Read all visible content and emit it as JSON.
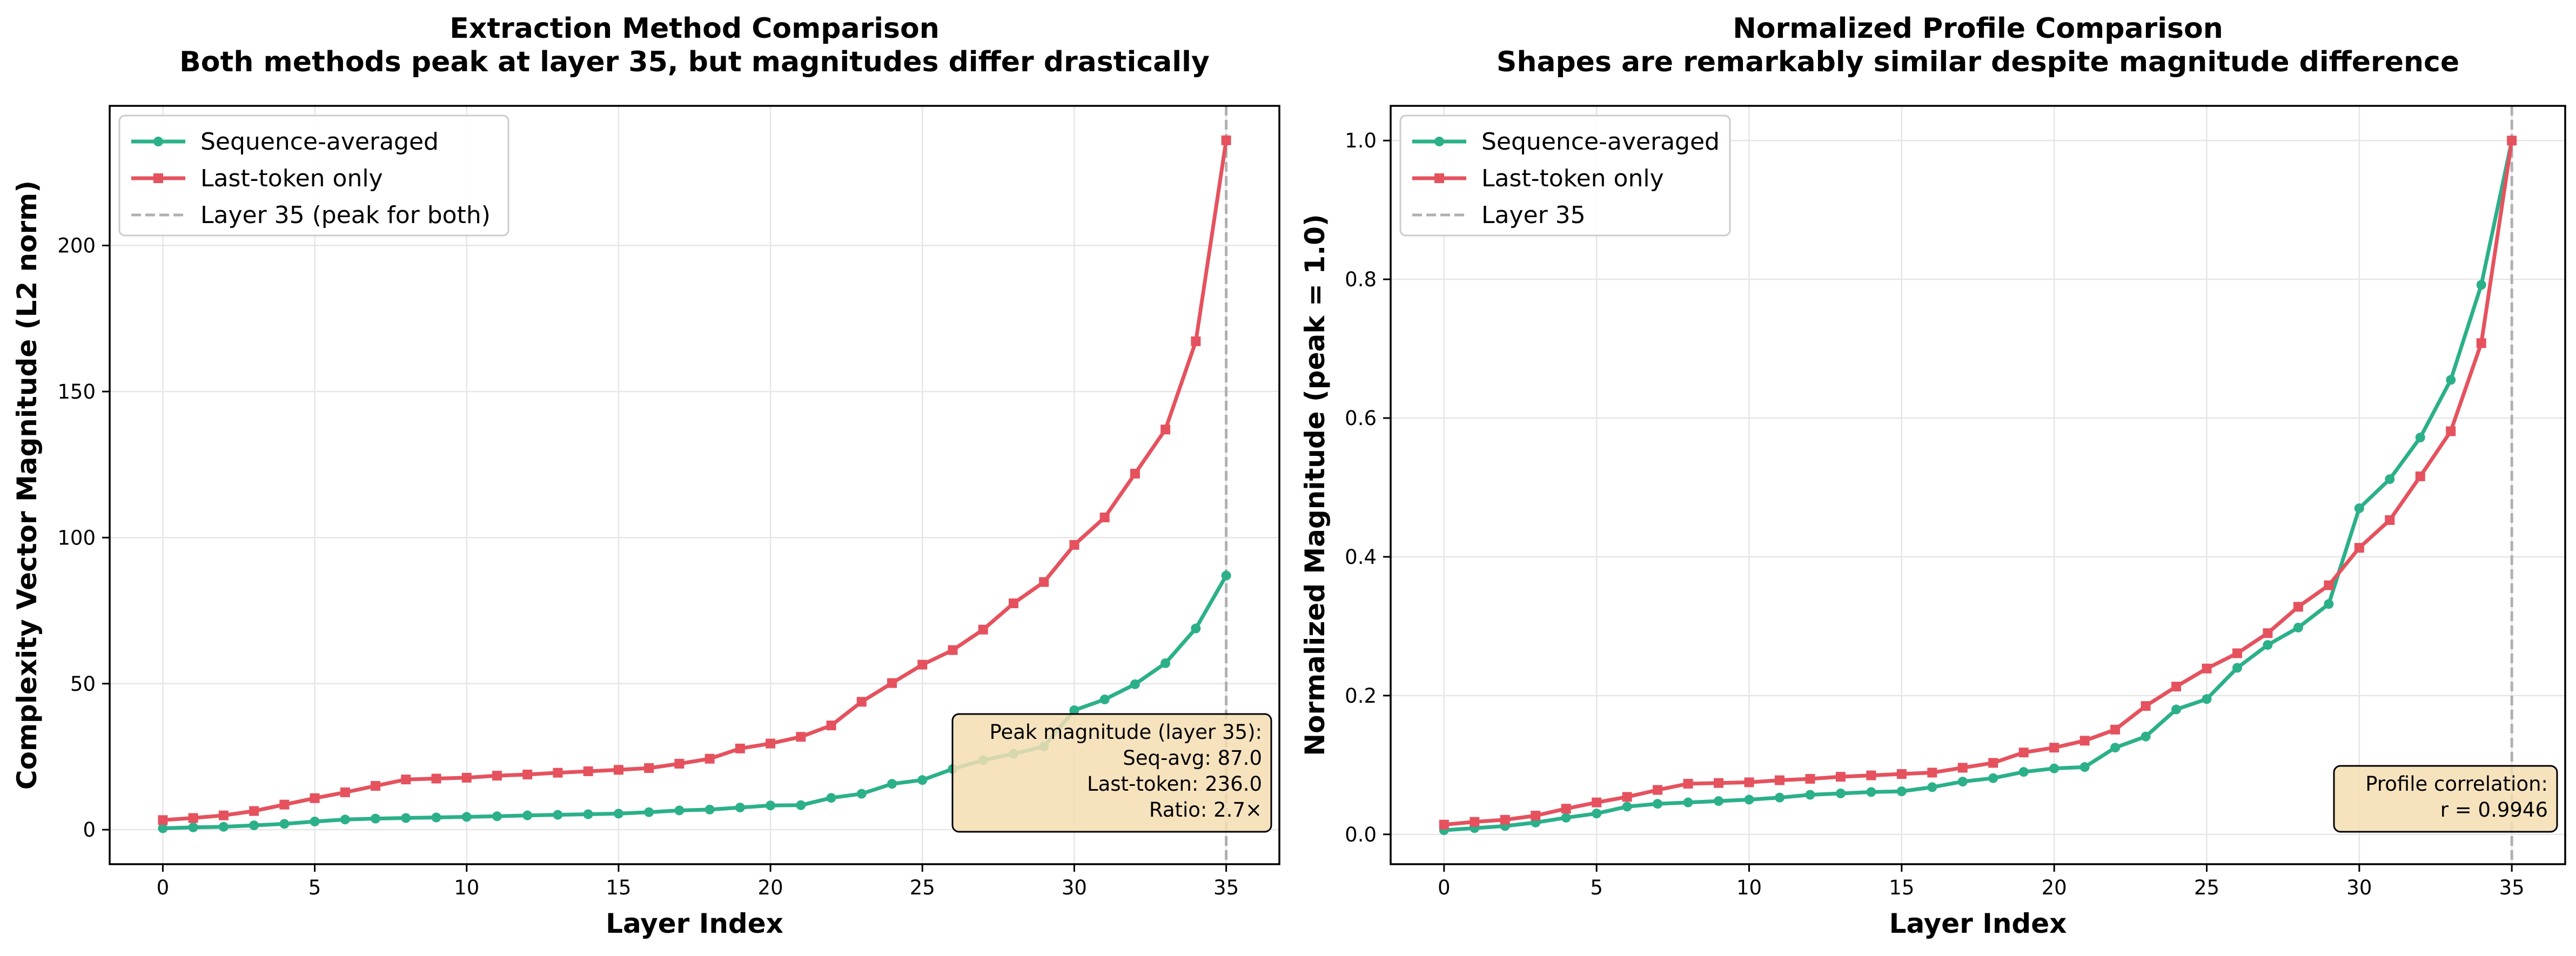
{
  "chart_data": [
    {
      "type": "line",
      "title_lines": [
        "Extraction Method Comparison",
        "Both methods peak at layer 35, but magnitudes differ drastically"
      ],
      "xlabel": "Layer Index",
      "ylabel": "Complexity Vector Magnitude (L2 norm)",
      "xlim": [
        -1.75,
        36.75
      ],
      "ylim": [
        -11.8,
        247.8
      ],
      "xticks": [
        0,
        5,
        10,
        15,
        20,
        25,
        30,
        35
      ],
      "yticks": [
        0,
        50,
        100,
        150,
        200
      ],
      "grid": true,
      "legend_position": "top-left",
      "x": [
        0,
        1,
        2,
        3,
        4,
        5,
        6,
        7,
        8,
        9,
        10,
        11,
        12,
        13,
        14,
        15,
        16,
        17,
        18,
        19,
        20,
        21,
        22,
        23,
        24,
        25,
        26,
        27,
        28,
        29,
        30,
        31,
        32,
        33,
        34,
        35
      ],
      "series": [
        {
          "name": "Sequence-averaged",
          "color": "#2bb08a",
          "marker": "circle",
          "values": [
            0.5,
            0.8,
            1.0,
            1.5,
            2.0,
            2.8,
            3.5,
            3.8,
            4.0,
            4.2,
            4.4,
            4.6,
            4.9,
            5.1,
            5.3,
            5.5,
            6.0,
            6.6,
            6.9,
            7.6,
            8.3,
            8.4,
            10.9,
            12.3,
            15.7,
            17.0,
            20.8,
            23.8,
            26.0,
            28.5,
            40.9,
            44.6,
            49.8,
            57.0,
            68.9,
            87.0
          ]
        },
        {
          "name": "Last-token only",
          "color": "#e5525e",
          "marker": "square",
          "values": [
            3.3,
            4.0,
            4.9,
            6.4,
            8.6,
            10.8,
            12.8,
            15.0,
            17.2,
            17.5,
            17.8,
            18.5,
            18.9,
            19.5,
            20.0,
            20.5,
            21.1,
            22.6,
            24.3,
            27.8,
            29.5,
            31.8,
            35.7,
            43.8,
            50.2,
            56.5,
            61.5,
            68.5,
            77.5,
            84.8,
            97.5,
            106.9,
            121.9,
            137.0,
            167.2,
            236.0
          ]
        }
      ],
      "reference_line": {
        "x": 35,
        "label": "Layer 35 (peak for both)",
        "color": "#b0b0b0"
      },
      "annotation_lines": [
        "Peak magnitude (layer 35):",
        "Seq-avg: 87.0",
        "Last-token: 236.0",
        "Ratio: 2.7×"
      ],
      "annotation_position": "bottom-right",
      "annotation_fill": "#f5deb3"
    },
    {
      "type": "line",
      "title_lines": [
        "Normalized Profile Comparison",
        "Shapes are remarkably similar despite magnitude difference"
      ],
      "xlabel": "Layer Index",
      "ylabel": "Normalized Magnitude (peak = 1.0)",
      "xlim": [
        -1.75,
        36.75
      ],
      "ylim": [
        -0.043,
        1.05
      ],
      "xticks": [
        0,
        5,
        10,
        15,
        20,
        25,
        30,
        35
      ],
      "yticks": [
        0.0,
        0.2,
        0.4,
        0.6,
        0.8,
        1.0
      ],
      "grid": true,
      "legend_position": "top-left",
      "x": [
        0,
        1,
        2,
        3,
        4,
        5,
        6,
        7,
        8,
        9,
        10,
        11,
        12,
        13,
        14,
        15,
        16,
        17,
        18,
        19,
        20,
        21,
        22,
        23,
        24,
        25,
        26,
        27,
        28,
        29,
        30,
        31,
        32,
        33,
        34,
        35
      ],
      "series": [
        {
          "name": "Sequence-averaged",
          "color": "#2bb08a",
          "marker": "circle",
          "values": [
            0.006,
            0.009,
            0.012,
            0.017,
            0.024,
            0.03,
            0.04,
            0.044,
            0.046,
            0.048,
            0.05,
            0.053,
            0.057,
            0.059,
            0.061,
            0.062,
            0.068,
            0.076,
            0.081,
            0.09,
            0.095,
            0.097,
            0.125,
            0.141,
            0.18,
            0.195,
            0.24,
            0.273,
            0.298,
            0.332,
            0.47,
            0.512,
            0.572,
            0.655,
            0.792,
            1.0
          ]
        },
        {
          "name": "Last-token only",
          "color": "#e5525e",
          "marker": "square",
          "values": [
            0.014,
            0.018,
            0.021,
            0.027,
            0.037,
            0.046,
            0.054,
            0.064,
            0.073,
            0.074,
            0.075,
            0.078,
            0.08,
            0.083,
            0.085,
            0.087,
            0.089,
            0.096,
            0.103,
            0.118,
            0.125,
            0.135,
            0.151,
            0.185,
            0.213,
            0.239,
            0.261,
            0.29,
            0.328,
            0.359,
            0.413,
            0.453,
            0.516,
            0.581,
            0.708,
            1.0
          ]
        }
      ],
      "reference_line": {
        "x": 35,
        "label": "Layer 35",
        "color": "#b0b0b0"
      },
      "annotation_lines": [
        "Profile correlation:",
        "r = 0.9946"
      ],
      "annotation_position": "bottom-right",
      "annotation_fill": "#f5deb3"
    }
  ]
}
